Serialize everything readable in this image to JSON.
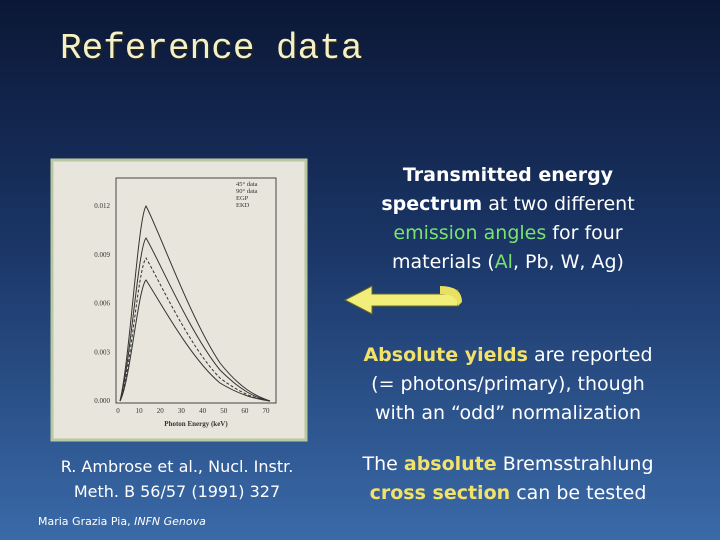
{
  "title": "Reference data",
  "figure": {
    "y_ticks": [
      "0.012",
      "0.009",
      "0.006",
      "0.003",
      "0.000"
    ],
    "x_ticks": [
      "0",
      "10",
      "20",
      "30",
      "40",
      "50",
      "60",
      "70"
    ],
    "x_label": "Photon Energy (keV)",
    "legend": [
      "45° data",
      "90° data",
      "EGP",
      "EKD"
    ]
  },
  "paragraphs": [
    {
      "lines": [
        [
          {
            "text": "Transmitted energy",
            "style": "bold"
          }
        ],
        [
          {
            "text": "spectrum",
            "style": "bold"
          },
          {
            "text": " at two different",
            "style": "plain"
          }
        ],
        [
          {
            "text": "emission angles",
            "style": "green"
          },
          {
            "text": " for four",
            "style": "plain"
          }
        ],
        [
          {
            "text": "materials (",
            "style": "plain"
          },
          {
            "text": "Al",
            "style": "green"
          },
          {
            "text": ", Pb, W, Ag)",
            "style": "plain"
          }
        ]
      ]
    },
    {
      "lines": [
        [
          {
            "text": "Absolute yields",
            "style": "highlight"
          },
          {
            "text": " are reported",
            "style": "plain"
          }
        ],
        [
          {
            "text": "(= photons/primary), though",
            "style": "plain"
          }
        ],
        [
          {
            "text": "with an “odd” normalization",
            "style": "plain"
          }
        ]
      ]
    },
    {
      "lines": [
        [
          {
            "text": "The ",
            "style": "plain"
          },
          {
            "text": "absolute",
            "style": "highlight"
          },
          {
            "text": " Bremsstrahlung",
            "style": "plain"
          }
        ],
        [
          {
            "text": "cross section",
            "style": "highlight"
          },
          {
            "text": " can be tested",
            "style": "plain"
          }
        ]
      ]
    },
    {
      "lines": [
        [
          {
            "text": "R. Ambrose et al., Nucl. Instr.",
            "style": "plain"
          }
        ],
        [
          {
            "text": "Meth. B 56/57 (1991) 327",
            "style": "plain"
          }
        ]
      ]
    }
  ],
  "footer": [
    {
      "text": "Maria Grazia Pia, ",
      "style": "plain"
    },
    {
      "text": "INFN Genova",
      "style": "italic"
    }
  ]
}
